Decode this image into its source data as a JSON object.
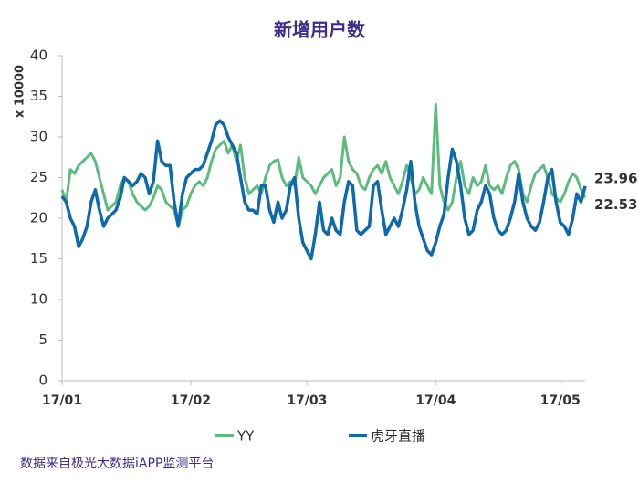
{
  "chart_data": {
    "type": "line",
    "title": "新增用户数",
    "y_label": "x 10000",
    "source": "数据来自极光大数据iAPP监测平台",
    "categories": [
      "17/01",
      null,
      null,
      null,
      null,
      null,
      null,
      null,
      null,
      null,
      null,
      null,
      null,
      null,
      null,
      null,
      null,
      null,
      null,
      null,
      null,
      null,
      null,
      null,
      null,
      null,
      null,
      null,
      null,
      null,
      null,
      "17/02",
      null,
      null,
      null,
      null,
      null,
      null,
      null,
      null,
      null,
      null,
      null,
      null,
      null,
      null,
      null,
      null,
      null,
      null,
      null,
      null,
      null,
      null,
      null,
      null,
      null,
      null,
      null,
      "17/03",
      null,
      null,
      null,
      null,
      null,
      null,
      null,
      null,
      null,
      null,
      null,
      null,
      null,
      null,
      null,
      null,
      null,
      null,
      null,
      null,
      null,
      null,
      null,
      null,
      null,
      null,
      null,
      null,
      null,
      null,
      "17/04",
      null,
      null,
      null,
      null,
      null,
      null,
      null,
      null,
      null,
      null,
      null,
      null,
      null,
      null,
      null,
      null,
      null,
      null,
      null,
      null,
      null,
      null,
      null,
      null,
      null,
      null,
      null,
      null,
      null,
      "17/05",
      null,
      null,
      null,
      null,
      null,
      null
    ],
    "series": [
      {
        "name": "YY",
        "color": "#5dbb7e",
        "values": [
          23.5,
          22,
          26,
          25.5,
          26.5,
          27,
          27.5,
          28,
          27,
          25,
          23,
          21,
          21.5,
          22,
          24,
          25,
          24.5,
          23,
          22,
          21.5,
          21,
          21.5,
          22.5,
          24,
          23.5,
          22,
          21.5,
          21,
          19,
          21,
          21.5,
          23,
          24,
          24.5,
          24,
          25,
          27,
          28.5,
          29,
          29.5,
          28,
          29,
          27,
          29,
          25,
          23,
          23.5,
          24,
          23,
          25,
          26.5,
          27,
          27.2,
          25,
          24,
          24.5,
          24,
          27.5,
          25,
          24.5,
          24,
          23,
          24,
          25,
          25.5,
          26,
          24,
          25,
          30,
          27,
          26,
          25.5,
          24,
          23.5,
          25,
          26,
          26.5,
          25.5,
          27,
          25,
          24,
          23,
          24.5,
          26.5,
          25,
          23,
          23.5,
          25,
          24,
          23,
          34,
          24,
          22,
          21,
          22,
          25,
          27,
          24,
          23,
          25,
          24,
          24.5,
          26.5,
          24,
          23.5,
          24,
          23,
          25,
          26.5,
          27,
          26,
          23,
          22,
          24,
          25.5,
          26,
          26.5,
          25,
          23,
          22.5,
          22,
          23,
          24.5,
          25.5,
          25,
          23.5,
          22.53
        ]
      },
      {
        "name": "虎牙直播",
        "color": "#0e6aab",
        "values": [
          22.7,
          22,
          20,
          19,
          16.5,
          17.5,
          19,
          22,
          23.5,
          21,
          19,
          20,
          20.5,
          21,
          22.5,
          25,
          24.5,
          24,
          24.5,
          25.5,
          25,
          23,
          24.5,
          29.5,
          27,
          26.5,
          26.5,
          22,
          19,
          23,
          25,
          25.5,
          26,
          26,
          26.5,
          28,
          29.5,
          31.5,
          32,
          31.5,
          30,
          29,
          28,
          25,
          22,
          21,
          21,
          20.5,
          24,
          24,
          21,
          19.5,
          22,
          20,
          21,
          24,
          25,
          20,
          17,
          16,
          15,
          18,
          22,
          18.5,
          18,
          20,
          18.5,
          18,
          22,
          24.5,
          24,
          18.5,
          18,
          18.5,
          19,
          24,
          24.5,
          21,
          18,
          19,
          20,
          19,
          21,
          23.5,
          27,
          22,
          19,
          17.5,
          16,
          15.5,
          17,
          19,
          20.5,
          25,
          28.5,
          27,
          24,
          20,
          18,
          18.5,
          21,
          22,
          24,
          23,
          20,
          18.5,
          18,
          18.5,
          20,
          22,
          25.5,
          22,
          20,
          19,
          18.5,
          19.5,
          22,
          25,
          26,
          22,
          19.5,
          19,
          18,
          20,
          23,
          22,
          23.96
        ]
      }
    ],
    "ylim": [
      0,
      40
    ],
    "yticks": [
      0,
      5,
      10,
      15,
      20,
      25,
      30,
      35,
      40
    ]
  }
}
